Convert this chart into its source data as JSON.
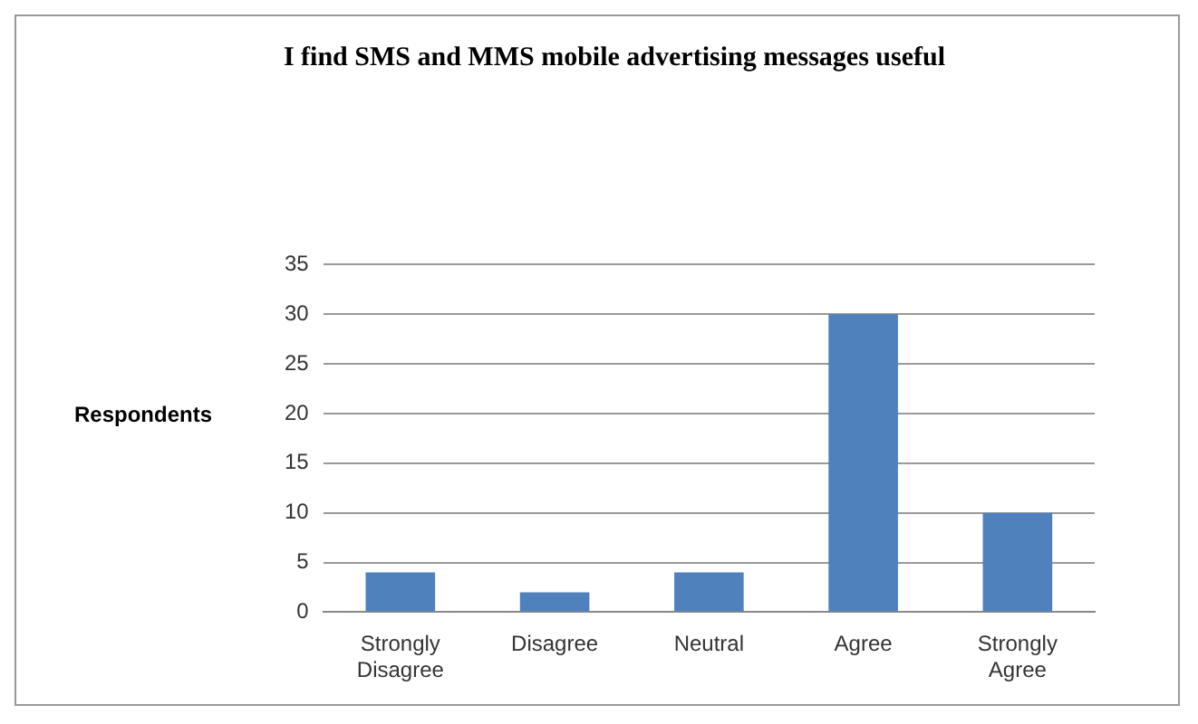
{
  "chart_data": {
    "type": "bar",
    "title": "I find SMS and MMS mobile advertising messages useful",
    "ylabel": "Respondents",
    "categories": [
      "Strongly Disagree",
      "Disagree",
      "Neutral",
      "Agree",
      "Strongly Agree"
    ],
    "values": [
      4,
      2,
      4,
      30,
      10
    ],
    "color": "#4f81bd",
    "ylim": [
      0,
      35
    ],
    "yticks": [
      0,
      5,
      10,
      15,
      20,
      25,
      30,
      35
    ],
    "grid": "y",
    "legend": false
  }
}
